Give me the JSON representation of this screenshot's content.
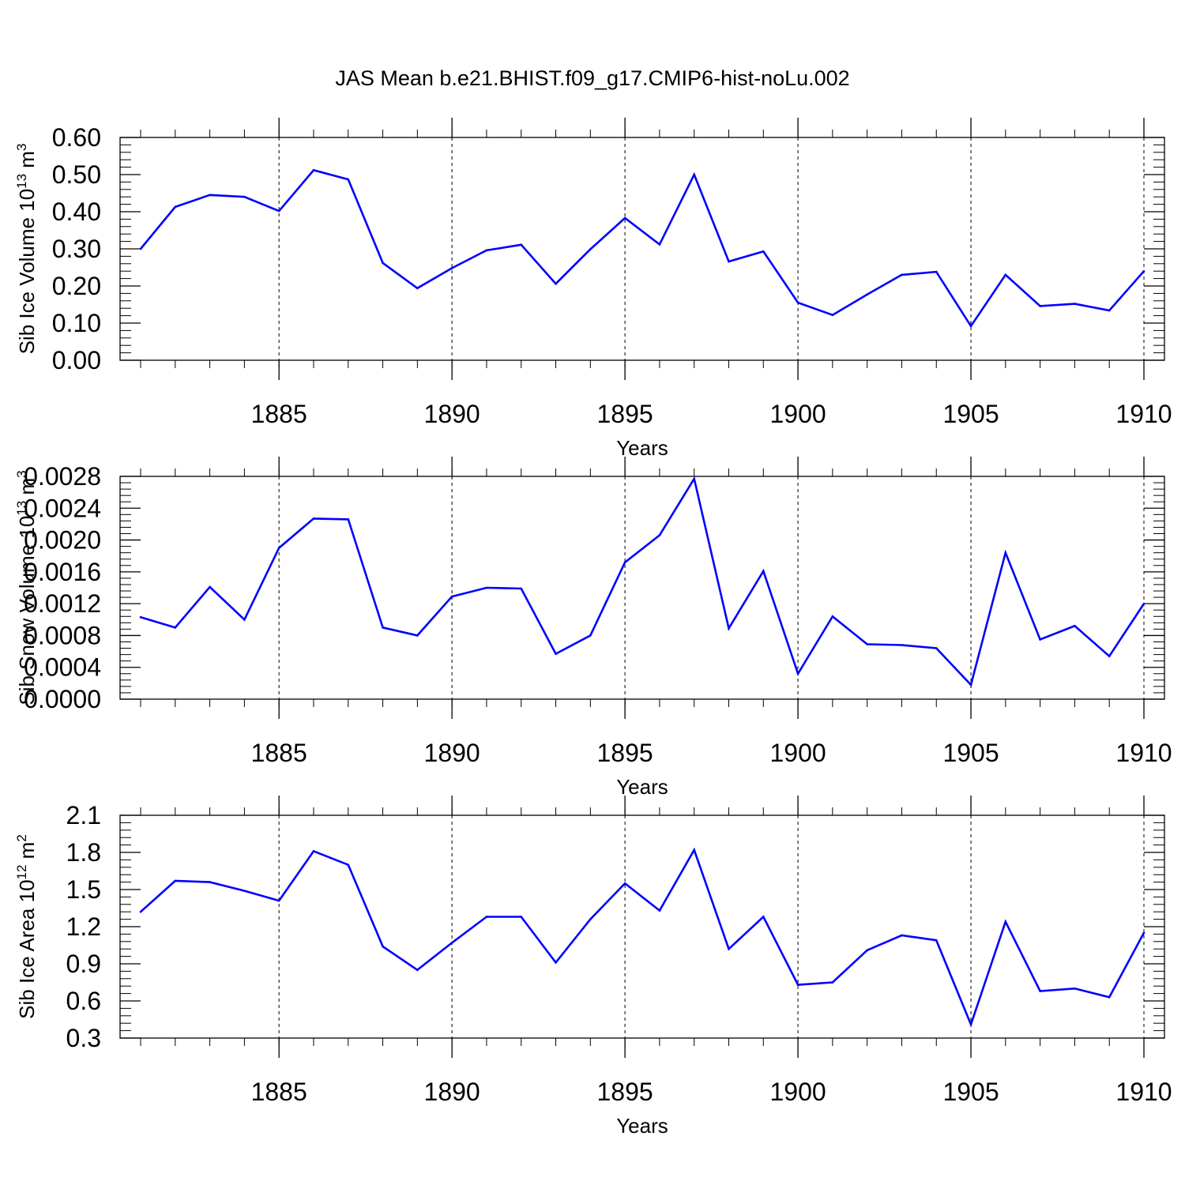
{
  "title": "JAS Mean b.e21.BHIST.f09_g17.CMIP6-hist-noLu.002",
  "chart_data": [
    {
      "type": "line",
      "ylabel": "Sib Ice Volume 10",
      "ylabel_sup": "13",
      "ylabel_unit": "m",
      "ylabel_unit_sup": "3",
      "xlabel": "Years",
      "xlim": [
        1881,
        1910
      ],
      "ylim": [
        0.0,
        0.6
      ],
      "yticks": [
        0.0,
        0.1,
        0.2,
        0.3,
        0.4,
        0.5,
        0.6
      ],
      "ytick_labels": [
        "0.00",
        "0.10",
        "0.20",
        "0.30",
        "0.40",
        "0.50",
        "0.60"
      ],
      "xticks": [
        1885,
        1890,
        1895,
        1900,
        1905,
        1910
      ],
      "xtick_labels": [
        "1885",
        "1890",
        "1895",
        "1900",
        "1905",
        "1910"
      ],
      "color": "#0000ff",
      "x": [
        1881,
        1882,
        1883,
        1884,
        1885,
        1886,
        1887,
        1888,
        1889,
        1890,
        1891,
        1892,
        1893,
        1894,
        1895,
        1896,
        1897,
        1898,
        1899,
        1900,
        1901,
        1902,
        1903,
        1904,
        1905,
        1906,
        1907,
        1908,
        1909,
        1910
      ],
      "values": [
        0.3,
        0.413,
        0.445,
        0.44,
        0.402,
        0.512,
        0.487,
        0.262,
        0.194,
        0.248,
        0.296,
        0.311,
        0.206,
        0.299,
        0.383,
        0.312,
        0.5,
        0.266,
        0.293,
        0.155,
        0.122,
        0.177,
        0.23,
        0.238,
        0.092,
        0.23,
        0.146,
        0.152,
        0.134,
        0.24
      ]
    },
    {
      "type": "line",
      "ylabel": "Sib Snow Volume 10",
      "ylabel_sup": "13",
      "ylabel_unit": "m",
      "ylabel_unit_sup": "3",
      "xlabel": "Years",
      "xlim": [
        1881,
        1910
      ],
      "ylim": [
        0.0,
        0.0028
      ],
      "yticks": [
        0.0,
        0.0004,
        0.0008,
        0.0012,
        0.0016,
        0.002,
        0.0024,
        0.0028
      ],
      "ytick_labels": [
        "0.0000",
        "0.0004",
        "0.0008",
        "0.0012",
        "0.0016",
        "0.0020",
        "0.0024",
        "0.0028"
      ],
      "xticks": [
        1885,
        1890,
        1895,
        1900,
        1905,
        1910
      ],
      "xtick_labels": [
        "1885",
        "1890",
        "1895",
        "1900",
        "1905",
        "1910"
      ],
      "color": "#0000ff",
      "x": [
        1881,
        1882,
        1883,
        1884,
        1885,
        1886,
        1887,
        1888,
        1889,
        1890,
        1891,
        1892,
        1893,
        1894,
        1895,
        1896,
        1897,
        1898,
        1899,
        1900,
        1901,
        1902,
        1903,
        1904,
        1905,
        1906,
        1907,
        1908,
        1909,
        1910
      ],
      "values": [
        0.00103,
        0.0009,
        0.00141,
        0.001,
        0.0019,
        0.00227,
        0.00226,
        0.0009,
        0.0008,
        0.00129,
        0.0014,
        0.00139,
        0.00057,
        0.0008,
        0.00172,
        0.00206,
        0.00277,
        0.00089,
        0.00161,
        0.00032,
        0.00104,
        0.00069,
        0.00068,
        0.00064,
        0.00018,
        0.00184,
        0.00075,
        0.00092,
        0.00054,
        0.0012
      ]
    },
    {
      "type": "line",
      "ylabel": "Sib Ice Area 10",
      "ylabel_sup": "12",
      "ylabel_unit": "m",
      "ylabel_unit_sup": "2",
      "xlabel": "Years",
      "xlim": [
        1881,
        1910
      ],
      "ylim": [
        0.3,
        2.1
      ],
      "yticks": [
        0.3,
        0.6,
        0.9,
        1.2,
        1.5,
        1.8,
        2.1
      ],
      "ytick_labels": [
        "0.3",
        "0.6",
        "0.9",
        "1.2",
        "1.5",
        "1.8",
        "2.1"
      ],
      "xticks": [
        1885,
        1890,
        1895,
        1900,
        1905,
        1910
      ],
      "xtick_labels": [
        "1885",
        "1890",
        "1895",
        "1900",
        "1905",
        "1910"
      ],
      "color": "#0000ff",
      "x": [
        1881,
        1882,
        1883,
        1884,
        1885,
        1886,
        1887,
        1888,
        1889,
        1890,
        1891,
        1892,
        1893,
        1894,
        1895,
        1896,
        1897,
        1898,
        1899,
        1900,
        1901,
        1902,
        1903,
        1904,
        1905,
        1906,
        1907,
        1908,
        1909,
        1910
      ],
      "values": [
        1.32,
        1.57,
        1.56,
        1.49,
        1.41,
        1.81,
        1.7,
        1.04,
        0.85,
        1.07,
        1.28,
        1.28,
        0.91,
        1.26,
        1.55,
        1.33,
        1.82,
        1.02,
        1.28,
        0.73,
        0.75,
        1.01,
        1.13,
        1.09,
        0.41,
        1.24,
        0.68,
        0.7,
        0.63,
        1.15
      ]
    }
  ]
}
